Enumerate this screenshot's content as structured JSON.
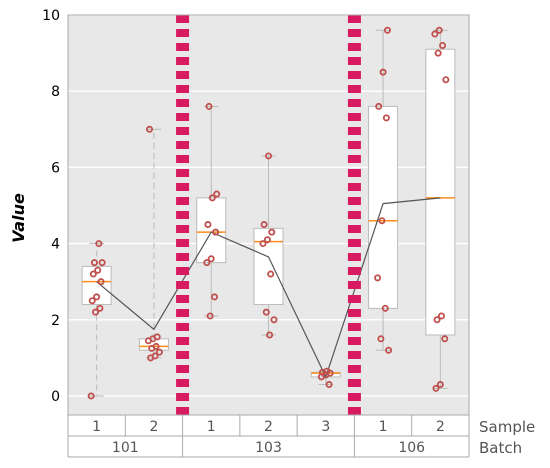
{
  "chart_data": {
    "type": "box",
    "ylabel": "Value",
    "ylim": [
      -0.5,
      10
    ],
    "yticks": [
      0,
      2,
      4,
      6,
      8,
      10
    ],
    "grid": true,
    "group_levels": [
      {
        "label": "Sample",
        "values": [
          "1",
          "2",
          "1",
          "2",
          "3",
          "1",
          "2"
        ]
      },
      {
        "label": "Batch",
        "groups": [
          {
            "name": "101",
            "span": 2
          },
          {
            "name": "103",
            "span": 3
          },
          {
            "name": "106",
            "span": 2
          }
        ]
      }
    ],
    "boxes": [
      {
        "batch": "101",
        "sample": "1",
        "whisker_low": 0.0,
        "q1": 2.4,
        "median": 3.0,
        "q3": 3.4,
        "whisker_high": 4.0,
        "points": [
          0.0,
          2.2,
          2.3,
          2.5,
          2.6,
          3.0,
          3.2,
          3.3,
          3.5,
          3.5,
          4.0
        ]
      },
      {
        "batch": "101",
        "sample": "2",
        "whisker_low": 1.0,
        "q1": 1.2,
        "median": 1.3,
        "q3": 1.5,
        "whisker_high": 7.0,
        "points": [
          1.0,
          1.05,
          1.15,
          1.25,
          1.3,
          1.45,
          1.5,
          1.55,
          7.0
        ]
      },
      {
        "batch": "103",
        "sample": "1",
        "whisker_low": 2.1,
        "q1": 3.5,
        "median": 4.3,
        "q3": 5.2,
        "whisker_high": 7.6,
        "points": [
          2.1,
          2.6,
          3.5,
          3.6,
          4.3,
          4.5,
          5.2,
          5.3,
          7.6
        ]
      },
      {
        "batch": "103",
        "sample": "2",
        "whisker_low": 1.6,
        "q1": 2.4,
        "median": 4.05,
        "q3": 4.4,
        "whisker_high": 6.3,
        "points": [
          1.6,
          2.0,
          2.2,
          3.2,
          4.0,
          4.1,
          4.3,
          4.5,
          6.3
        ]
      },
      {
        "batch": "103",
        "sample": "3",
        "whisker_low": 0.3,
        "q1": 0.5,
        "median": 0.6,
        "q3": 0.62,
        "whisker_high": 0.65,
        "points": [
          0.3,
          0.5,
          0.55,
          0.6,
          0.62,
          0.65
        ]
      },
      {
        "batch": "106",
        "sample": "1",
        "whisker_low": 1.2,
        "q1": 2.3,
        "median": 4.6,
        "q3": 7.6,
        "whisker_high": 9.6,
        "points": [
          1.2,
          1.5,
          2.3,
          3.1,
          4.6,
          7.3,
          7.6,
          8.5,
          9.6
        ]
      },
      {
        "batch": "106",
        "sample": "2",
        "whisker_low": 0.2,
        "q1": 1.6,
        "median": 5.2,
        "q3": 9.1,
        "whisker_high": 9.6,
        "points": [
          0.2,
          0.3,
          1.5,
          2.0,
          2.1,
          8.3,
          9.0,
          9.2,
          9.5,
          9.6
        ]
      }
    ],
    "mean_line": [
      3.0,
      1.75,
      4.3,
      3.65,
      0.5,
      5.05,
      5.2
    ],
    "batch_separators": [
      "101|103",
      "103|106"
    ],
    "colors": {
      "background": "#e8e8e8",
      "box_fill": "#ffffff",
      "box_edge": "#bbbbbb",
      "median": "#ff8c1a",
      "point": "#c0504d",
      "mean_line": "#555555",
      "separator": "#d81b60",
      "grid": "#ffffff",
      "group_border": "#aaaaaa"
    }
  }
}
